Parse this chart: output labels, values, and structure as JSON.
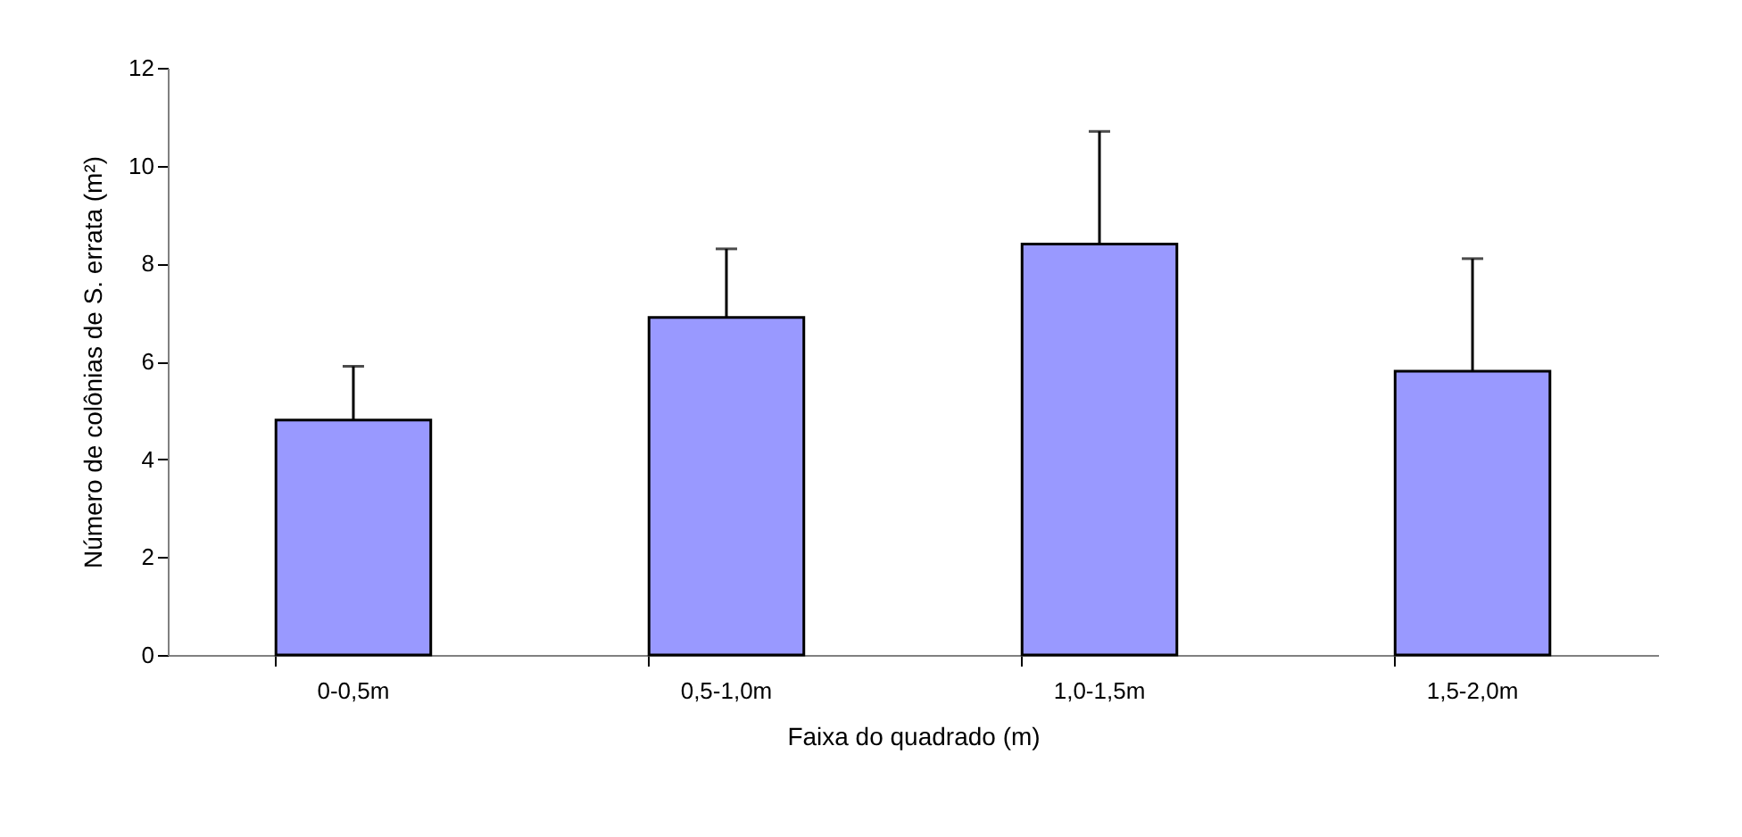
{
  "chart_data": {
    "type": "bar",
    "xlabel": "Faixa do quadrado (m)",
    "ylabel": "Número de colônias de S. errata (m²)",
    "categories": [
      "0-0,5m",
      "0,5-1,0m",
      "1,0-1,5m",
      "1,5-2,0m"
    ],
    "values": [
      4.8,
      6.9,
      8.4,
      5.8
    ],
    "errors": [
      [
        4.8,
        5.9
      ],
      [
        6.9,
        8.3
      ],
      [
        8.4,
        10.7
      ],
      [
        5.8,
        8.1
      ]
    ],
    "color": "#9999ff",
    "ylim": [
      0,
      12
    ],
    "yticks": [
      0,
      2,
      4,
      6,
      8,
      10,
      12
    ],
    "grid": false
  }
}
